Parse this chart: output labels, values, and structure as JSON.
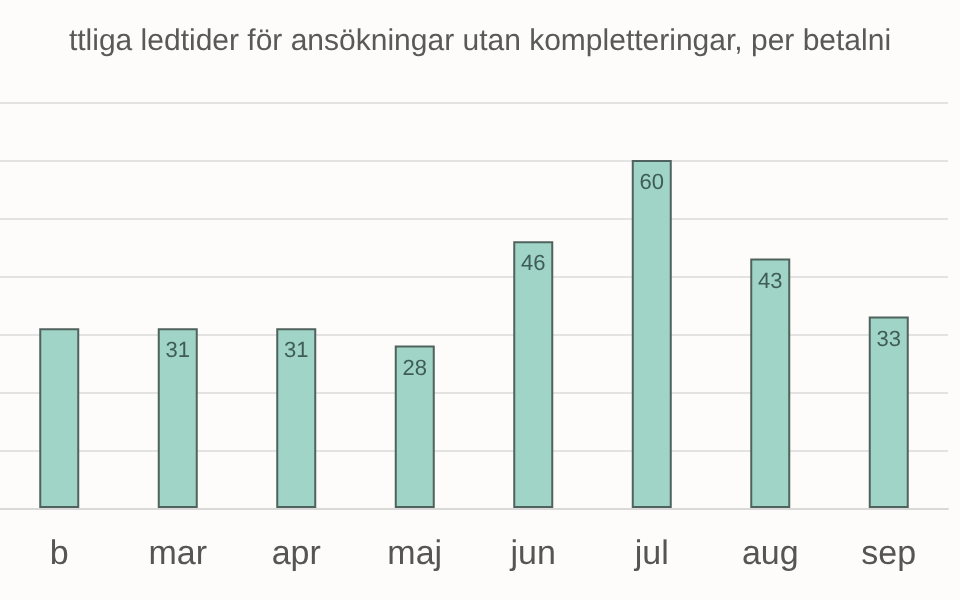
{
  "chart_data": {
    "type": "bar",
    "title": "ttliga ledtider för ansökningar utan kompletteringar, per betalni",
    "categories": [
      "b",
      "mar",
      "apr",
      "maj",
      "jun",
      "jul",
      "aug",
      "sep"
    ],
    "values": [
      31,
      31,
      31,
      28,
      46,
      60,
      43,
      33
    ],
    "value_labels": [
      null,
      "31",
      "31",
      "28",
      "46",
      "60",
      "43",
      "33"
    ],
    "color": "#9fd4c7",
    "ylim": [
      0,
      70
    ],
    "yticks": [
      0,
      10,
      20,
      30,
      40,
      50,
      60,
      70
    ],
    "grid": "y",
    "tick_labels": "x"
  }
}
